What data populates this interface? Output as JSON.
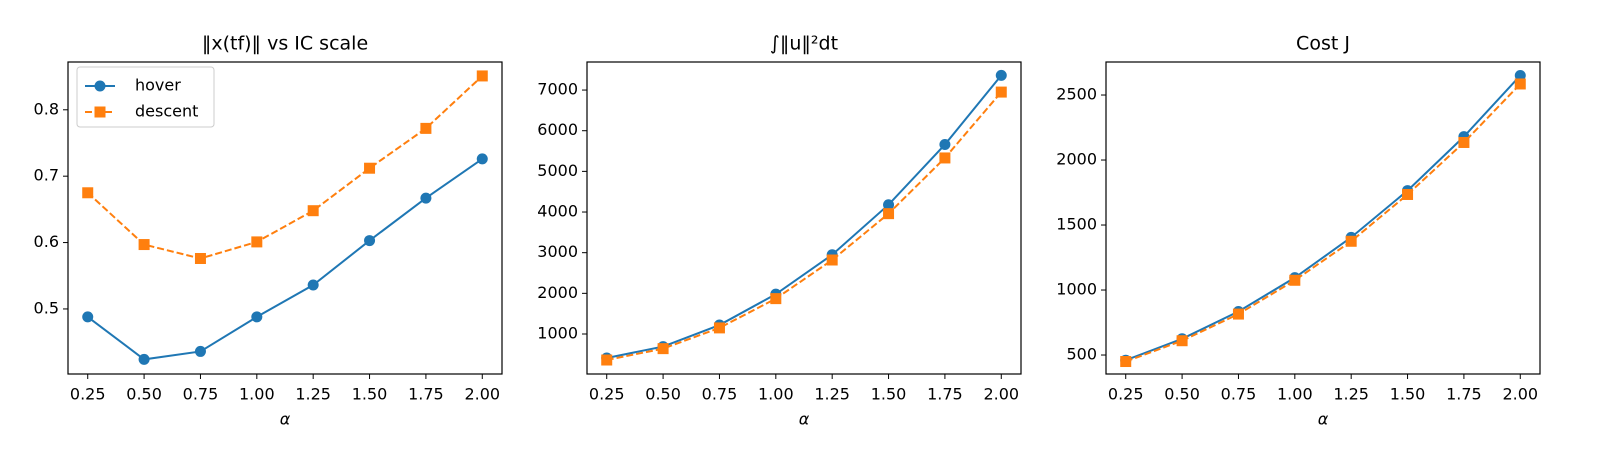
{
  "chart_data": [
    {
      "type": "line",
      "title": "‖x(tf)‖ vs IC scale",
      "xlabel": "α",
      "x": [
        0.25,
        0.5,
        0.75,
        1.0,
        1.25,
        1.5,
        1.75,
        2.0
      ],
      "series": [
        {
          "name": "hover",
          "color": "#1f77b4",
          "marker": "circle",
          "linestyle": "solid",
          "values": [
            0.488,
            0.424,
            0.436,
            0.488,
            0.536,
            0.603,
            0.667,
            0.726
          ]
        },
        {
          "name": "descent",
          "color": "#ff7f0e",
          "marker": "square",
          "linestyle": "dashed",
          "values": [
            0.675,
            0.597,
            0.576,
            0.601,
            0.648,
            0.712,
            0.772,
            0.851
          ]
        }
      ],
      "xlim": [
        0.1625,
        2.0875
      ],
      "xticks": [
        0.25,
        {
          "value": 0.5,
          "label": "0.50"
        },
        0.75,
        {
          "value": 1,
          "label": "1.00"
        },
        1.25,
        {
          "value": 1.5,
          "label": "1.50"
        },
        1.75,
        {
          "value": 2,
          "label": "2.00"
        }
      ],
      "ylim": [
        0.402,
        0.872
      ],
      "yticks": [
        0.5,
        0.6,
        0.7,
        0.8
      ],
      "legend": "upper left"
    },
    {
      "type": "line",
      "title": "∫‖u‖²dt",
      "xlabel": "α",
      "x": [
        0.25,
        0.5,
        0.75,
        1.0,
        1.25,
        1.5,
        1.75,
        2.0
      ],
      "series": [
        {
          "name": "hover",
          "color": "#1f77b4",
          "marker": "circle",
          "linestyle": "solid",
          "values": [
            410,
            690,
            1220,
            1980,
            2950,
            4180,
            5660,
            7360
          ]
        },
        {
          "name": "descent",
          "color": "#ff7f0e",
          "marker": "square",
          "linestyle": "dashed",
          "values": [
            360,
            640,
            1150,
            1870,
            2820,
            3960,
            5330,
            6950
          ]
        }
      ],
      "xlim": [
        0.1625,
        2.0875
      ],
      "xticks": [
        0.25,
        {
          "value": 0.5,
          "label": "0.50"
        },
        0.75,
        {
          "value": 1,
          "label": "1.00"
        },
        1.25,
        {
          "value": 1.5,
          "label": "1.50"
        },
        1.75,
        {
          "value": 2,
          "label": "2.00"
        }
      ],
      "ylim": [
        16,
        7690
      ],
      "yticks": [
        1000,
        2000,
        3000,
        4000,
        5000,
        6000,
        7000
      ]
    },
    {
      "type": "line",
      "title": "Cost J",
      "xlabel": "α",
      "x": [
        0.25,
        0.5,
        0.75,
        1.0,
        1.25,
        1.5,
        1.75,
        2.0
      ],
      "series": [
        {
          "name": "hover",
          "color": "#1f77b4",
          "marker": "circle",
          "linestyle": "solid",
          "values": [
            460,
            625,
            835,
            1095,
            1405,
            1765,
            2180,
            2650
          ]
        },
        {
          "name": "descent",
          "color": "#ff7f0e",
          "marker": "square",
          "linestyle": "dashed",
          "values": [
            450,
            610,
            815,
            1075,
            1375,
            1735,
            2135,
            2585
          ]
        }
      ],
      "xlim": [
        0.1625,
        2.0875
      ],
      "xticks": [
        0.25,
        {
          "value": 0.5,
          "label": "0.50"
        },
        0.75,
        {
          "value": 1,
          "label": "1.00"
        },
        1.25,
        {
          "value": 1.5,
          "label": "1.50"
        },
        1.75,
        {
          "value": 2,
          "label": "2.00"
        }
      ],
      "ylim": [
        354,
        2754
      ],
      "yticks": [
        500,
        1000,
        1500,
        2000,
        2500
      ]
    }
  ]
}
